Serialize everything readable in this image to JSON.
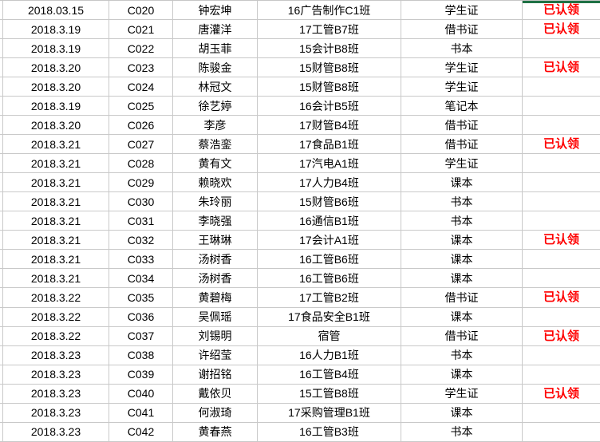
{
  "app": {
    "description": "spreadsheet lost-and-found register"
  },
  "colors": {
    "background": "#ffffff",
    "grid_line": "#c9c9c9",
    "text": "#000000",
    "claimed_text": "#ff0000",
    "selection_border_green": "#1f7145"
  },
  "claimed_label": "已认领",
  "rows": [
    {
      "date": "2018.03.15",
      "code": "C020",
      "name": "钟宏坤",
      "class_name": "16广告制作C1班",
      "item": "学生证",
      "status": "已认领"
    },
    {
      "date": "2018.3.19",
      "code": "C021",
      "name": "唐灌洋",
      "class_name": "17工管B7班",
      "item": "借书证",
      "status": "已认领"
    },
    {
      "date": "2018.3.19",
      "code": "C022",
      "name": "胡玉菲",
      "class_name": "15会计B8班",
      "item": "书本",
      "status": ""
    },
    {
      "date": "2018.3.20",
      "code": "C023",
      "name": "陈骏金",
      "class_name": "15财管B8班",
      "item": "学生证",
      "status": "已认领"
    },
    {
      "date": "2018.3.20",
      "code": "C024",
      "name": "林冠文",
      "class_name": "15财管B8班",
      "item": "学生证",
      "status": ""
    },
    {
      "date": "2018.3.19",
      "code": "C025",
      "name": "徐艺婷",
      "class_name": "16会计B5班",
      "item": "笔记本",
      "status": ""
    },
    {
      "date": "2018.3.20",
      "code": "C026",
      "name": "李彦",
      "class_name": "17财管B4班",
      "item": "借书证",
      "status": ""
    },
    {
      "date": "2018.3.21",
      "code": "C027",
      "name": "蔡浩銮",
      "class_name": "17食品B1班",
      "item": "借书证",
      "status": "已认领"
    },
    {
      "date": "2018.3.21",
      "code": "C028",
      "name": "黄有文",
      "class_name": "17汽电A1班",
      "item": "学生证",
      "status": ""
    },
    {
      "date": "2018.3.21",
      "code": "C029",
      "name": "赖晓欢",
      "class_name": "17人力B4班",
      "item": "课本",
      "status": ""
    },
    {
      "date": "2018.3.21",
      "code": "C030",
      "name": "朱玲丽",
      "class_name": "15财管B6班",
      "item": "书本",
      "status": ""
    },
    {
      "date": "2018.3.21",
      "code": "C031",
      "name": "李晓强",
      "class_name": "16通信B1班",
      "item": "书本",
      "status": ""
    },
    {
      "date": "2018.3.21",
      "code": "C032",
      "name": "王琳琳",
      "class_name": "17会计A1班",
      "item": "课本",
      "status": "已认领"
    },
    {
      "date": "2018.3.21",
      "code": "C033",
      "name": "汤树香",
      "class_name": "16工管B6班",
      "item": "课本",
      "status": ""
    },
    {
      "date": "2018.3.21",
      "code": "C034",
      "name": "汤树香",
      "class_name": "16工管B6班",
      "item": "课本",
      "status": ""
    },
    {
      "date": "2018.3.22",
      "code": "C035",
      "name": "黄碧梅",
      "class_name": "17工管B2班",
      "item": "借书证",
      "status": "已认领"
    },
    {
      "date": "2018.3.22",
      "code": "C036",
      "name": "吴佩瑶",
      "class_name": "17食品安全B1班",
      "item": "课本",
      "status": ""
    },
    {
      "date": "2018.3.22",
      "code": "C037",
      "name": "刘锡明",
      "class_name": "宿管",
      "item": "借书证",
      "status": "已认领"
    },
    {
      "date": "2018.3.23",
      "code": "C038",
      "name": "许绍莹",
      "class_name": "16人力B1班",
      "item": "书本",
      "status": ""
    },
    {
      "date": "2018.3.23",
      "code": "C039",
      "name": "谢招铭",
      "class_name": "16工管B4班",
      "item": "课本",
      "status": ""
    },
    {
      "date": "2018.3.23",
      "code": "C040",
      "name": "戴依贝",
      "class_name": "15工管B8班",
      "item": "学生证",
      "status": "已认领"
    },
    {
      "date": "2018.3.23",
      "code": "C041",
      "name": "何淑琦",
      "class_name": "17采购管理B1班",
      "item": "课本",
      "status": ""
    },
    {
      "date": "2018.3.23",
      "code": "C042",
      "name": "黄春燕",
      "class_name": "16工管B3班",
      "item": "书本",
      "status": ""
    }
  ]
}
